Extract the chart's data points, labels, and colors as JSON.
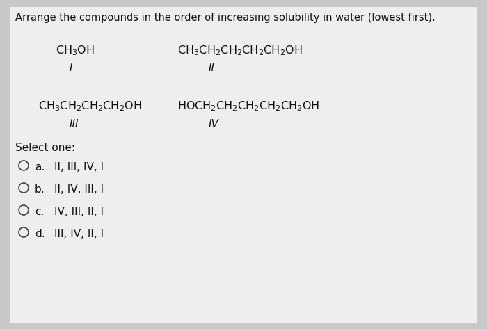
{
  "title": "Arrange the compounds in the order of increasing solubility in water (lowest first).",
  "bg_outer": "#c8c8c8",
  "bg_inner": "#eeeeee",
  "compound_I_formula": "CH$_3$OH",
  "compound_I_label": "I",
  "compound_II_formula": "CH$_3$CH$_2$CH$_2$CH$_2$CH$_2$OH",
  "compound_II_label": "II",
  "compound_III_formula": "CH$_3$CH$_2$CH$_2$CH$_2$OH",
  "compound_III_label": "III",
  "compound_IV_formula": "HOCH$_2$CH$_2$CH$_2$CH$_2$CH$_2$OH",
  "compound_IV_label": "IV",
  "select_one": "Select one:",
  "opt_a_letter": "a.",
  "opt_a_text": "II, III, IV, I",
  "opt_b_letter": "b.",
  "opt_b_text": "II, IV, III, I",
  "opt_c_letter": "c.",
  "opt_c_text": "IV, III, II, I",
  "opt_d_letter": "d.",
  "opt_d_text": "III, IV, II, I",
  "title_fontsize": 10.5,
  "formula_fontsize": 11.5,
  "label_fontsize": 11,
  "option_fontsize": 11
}
